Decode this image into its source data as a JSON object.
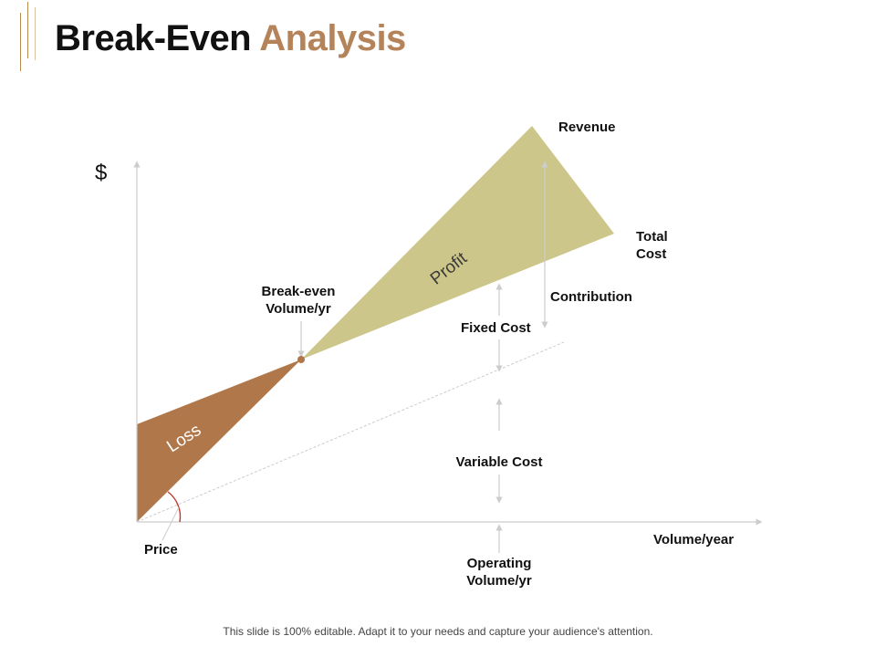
{
  "slide": {
    "title_part1": "Break-Even",
    "title_part2": "Analysis",
    "footer": "This slide is 100% editable. Adapt it to your needs and capture your audience's attention."
  },
  "diagram": {
    "y_axis_symbol": "$",
    "x_axis_label": "Volume/year",
    "regions": {
      "profit": "Profit",
      "loss": "Loss"
    },
    "lines": {
      "revenue": "Revenue",
      "total_cost_line1": "Total",
      "total_cost_line2": "Cost"
    },
    "break_even_line1": "Break-even",
    "break_even_line2": "Volume/yr",
    "contribution": "Contribution",
    "fixed_cost": "Fixed Cost",
    "variable_cost": "Variable Cost",
    "operating_line1": "Operating",
    "operating_line2": "Volume/yr",
    "price": "Price",
    "colors": {
      "profit_fill": "#cdc68a",
      "loss_fill": "#b0784a",
      "accent": "#b5835a",
      "angle_arc": "#c0392b"
    }
  }
}
